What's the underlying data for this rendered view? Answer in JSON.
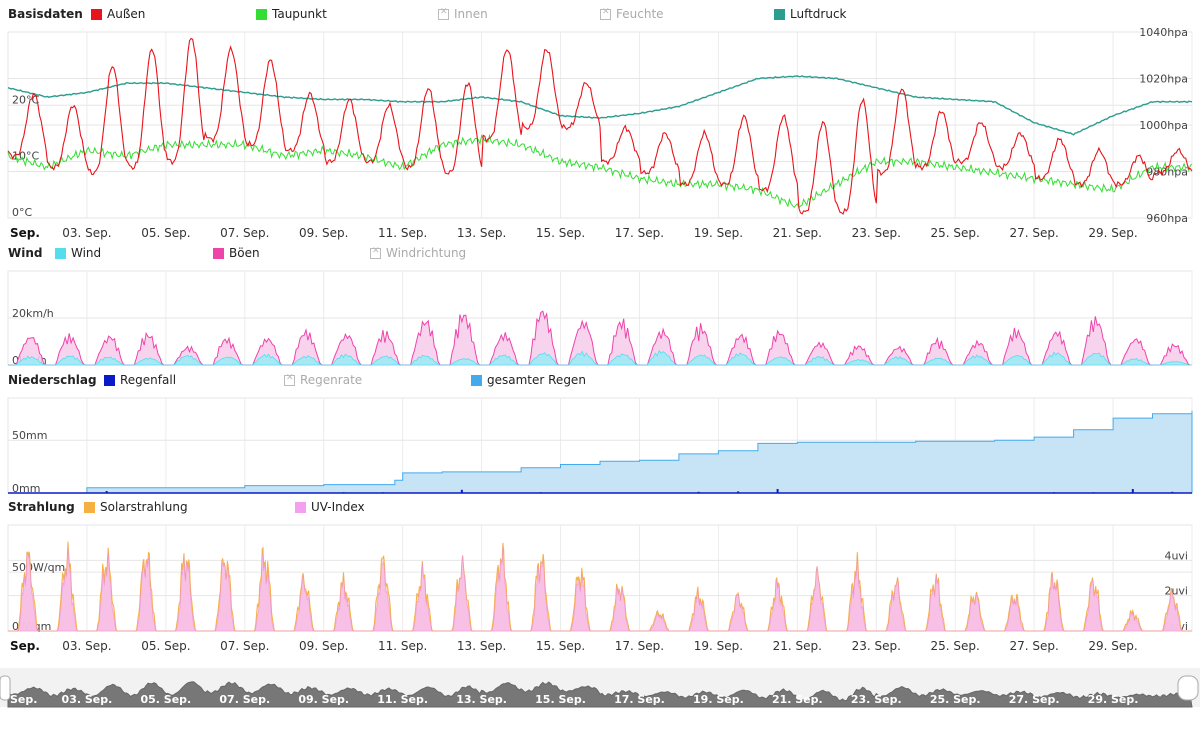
{
  "legends": [
    {
      "title": "Basisdaten",
      "top": 14,
      "items": [
        {
          "label": "Außen",
          "color": "#e8141c",
          "enabled": true
        },
        {
          "label": "Taupunkt",
          "color": "#33dd33",
          "enabled": true
        },
        {
          "label": "Innen",
          "color": "#cccccc",
          "enabled": false
        },
        {
          "label": "Feuchte",
          "color": "#cccccc",
          "enabled": false
        },
        {
          "label": "Luftdruck",
          "color": "#2a9d8f",
          "enabled": true
        }
      ]
    },
    {
      "title": "Wind",
      "top": 253,
      "items": [
        {
          "label": "Wind",
          "color": "#55ddee",
          "enabled": true
        },
        {
          "label": "Böen",
          "color": "#ee44aa",
          "enabled": true
        },
        {
          "label": "Windrichtung",
          "color": "#cccccc",
          "enabled": false
        }
      ]
    },
    {
      "title": "Niederschlag",
      "top": 380,
      "items": [
        {
          "label": "Regenfall",
          "color": "#0a1ac8",
          "enabled": true
        },
        {
          "label": "Regenrate",
          "color": "#cccccc",
          "enabled": false
        },
        {
          "label": "gesamter Regen",
          "color": "#44aaee",
          "enabled": true
        }
      ]
    },
    {
      "title": "Strahlung",
      "top": 507,
      "items": [
        {
          "label": "Solarstrahlung",
          "color": "#f5b041",
          "enabled": true
        },
        {
          "label": "UV-Index",
          "color": "#f3a0f0",
          "enabled": true
        }
      ]
    }
  ],
  "x_axis": {
    "month_label": "Sep.",
    "ticks": [
      "03. Sep.",
      "05. Sep.",
      "07. Sep.",
      "09. Sep.",
      "11. Sep.",
      "13. Sep.",
      "15. Sep.",
      "17. Sep.",
      "19. Sep.",
      "21. Sep.",
      "23. Sep.",
      "25. Sep.",
      "27. Sep.",
      "29. Sep."
    ]
  },
  "chart_data": [
    {
      "type": "line",
      "title": "Basisdaten",
      "x_range": [
        1,
        31
      ],
      "y_left": {
        "ticks": [
          "0°C",
          "10°C",
          "20°C"
        ],
        "range_c": [
          0,
          33
        ]
      },
      "y_right": {
        "ticks": [
          "960hpa",
          "980hpa",
          "1000hpa",
          "1020hpa",
          "1040hpa"
        ],
        "range_hpa": [
          960,
          1040
        ]
      },
      "series": [
        {
          "name": "Außen",
          "color": "#e8141c",
          "axis": "left",
          "daily_max_c": [
            22,
            20,
            27,
            30,
            32,
            30,
            28,
            22,
            21,
            20,
            23,
            24,
            30,
            30,
            24,
            16,
            15,
            15,
            18,
            18,
            17,
            21,
            23,
            19,
            17,
            15,
            14,
            12,
            11,
            12
          ],
          "daily_min_c": [
            11,
            9,
            8,
            9,
            10,
            14,
            13,
            12,
            10,
            10,
            9,
            8,
            14,
            16,
            16,
            10,
            8,
            6,
            6,
            5,
            1,
            1,
            8,
            9,
            10,
            9,
            7,
            6,
            6,
            8
          ]
        },
        {
          "name": "Taupunkt",
          "color": "#33dd33",
          "axis": "left",
          "daily_values_c": [
            11,
            9,
            12,
            11,
            13,
            13,
            13,
            11,
            12,
            11,
            9,
            13,
            14,
            13,
            10,
            9,
            7,
            6,
            6,
            5,
            2,
            6,
            10,
            10,
            9,
            8,
            7,
            6,
            5,
            9
          ]
        },
        {
          "name": "Luftdruck",
          "color": "#2a9d8f",
          "axis": "right",
          "daily_values_hpa": [
            1016,
            1012,
            1014,
            1018,
            1018,
            1016,
            1014,
            1012,
            1011,
            1011,
            1010,
            1010,
            1012,
            1010,
            1004,
            1003,
            1005,
            1008,
            1014,
            1020,
            1021,
            1020,
            1016,
            1012,
            1011,
            1010,
            1001,
            996,
            1004,
            1010
          ]
        }
      ]
    },
    {
      "type": "area",
      "title": "Wind",
      "x_range": [
        1,
        31
      ],
      "y_left": {
        "ticks": [
          "0km/h",
          "20km/h"
        ],
        "range_kmh": [
          0,
          40
        ]
      },
      "series": [
        {
          "name": "Wind",
          "color": "#55ddee",
          "daily_peak_kmh": [
            4,
            5,
            4,
            4,
            5,
            5,
            5,
            5,
            5,
            5,
            5,
            4,
            5,
            7,
            6,
            6,
            7,
            6,
            6,
            5,
            4,
            3,
            4,
            4,
            5,
            6,
            6,
            7,
            3,
            2
          ]
        },
        {
          "name": "Böen",
          "color": "#ee44aa",
          "daily_peak_kmh": [
            18,
            15,
            17,
            15,
            10,
            14,
            16,
            18,
            19,
            16,
            25,
            26,
            18,
            30,
            28,
            22,
            20,
            19,
            17,
            18,
            14,
            10,
            11,
            12,
            13,
            18,
            20,
            25,
            17,
            10
          ]
        }
      ]
    },
    {
      "type": "area",
      "title": "Niederschlag",
      "x_range": [
        1,
        31
      ],
      "y_left": {
        "ticks": [
          "0mm",
          "50mm"
        ],
        "range_mm": [
          0,
          90
        ]
      },
      "series": [
        {
          "name": "Regenfall",
          "color": "#0a1ac8",
          "daily_mm": [
            0,
            0,
            5,
            0,
            0,
            0,
            1,
            0,
            2,
            2,
            1,
            8,
            1,
            2,
            0,
            1,
            1,
            3,
            4,
            10,
            0,
            1,
            1,
            0,
            0,
            0,
            2,
            2,
            10,
            3
          ]
        },
        {
          "name": "gesamter Regen",
          "color": "#44aaee",
          "x": [
            1,
            3,
            4,
            7,
            9,
            10.8,
            11,
            12,
            13,
            14,
            15,
            16,
            17,
            18,
            19,
            20,
            21,
            24,
            26,
            27,
            28,
            29,
            30,
            31
          ],
          "values_mm": [
            0,
            5,
            5,
            7,
            8,
            12,
            19,
            20,
            20,
            24,
            27,
            30,
            31,
            37,
            40,
            47,
            48,
            49,
            50,
            53,
            60,
            71,
            75,
            78
          ]
        }
      ]
    },
    {
      "type": "area",
      "title": "Strahlung",
      "x_range": [
        1,
        31
      ],
      "y_left": {
        "ticks": [
          "0W/qm",
          "500W/qm"
        ],
        "range_wqm": [
          0,
          900
        ]
      },
      "y_right": {
        "ticks": [
          "0uvi",
          "2uvi",
          "4uvi"
        ],
        "range_uvi": [
          0,
          6
        ]
      },
      "series": [
        {
          "name": "Solarstrahlung",
          "color": "#f5b041",
          "daily_peak_wqm": [
            800,
            800,
            780,
            820,
            800,
            780,
            800,
            550,
            520,
            750,
            620,
            700,
            820,
            780,
            640,
            480,
            200,
            400,
            380,
            500,
            600,
            680,
            520,
            560,
            400,
            380,
            580,
            540,
            200,
            400
          ]
        },
        {
          "name": "UV-Index",
          "color": "#f3a0f0",
          "daily_peak_uvi": [
            5.2,
            5.1,
            5.0,
            5.3,
            5.2,
            5.1,
            5.1,
            3.5,
            3.3,
            4.6,
            4.0,
            4.7,
            5.3,
            5.0,
            4.0,
            3.2,
            1.2,
            2.5,
            2.5,
            3.2,
            4.0,
            4.3,
            3.4,
            3.7,
            2.6,
            2.4,
            3.8,
            3.5,
            1.2,
            2.6
          ]
        }
      ]
    }
  ]
}
